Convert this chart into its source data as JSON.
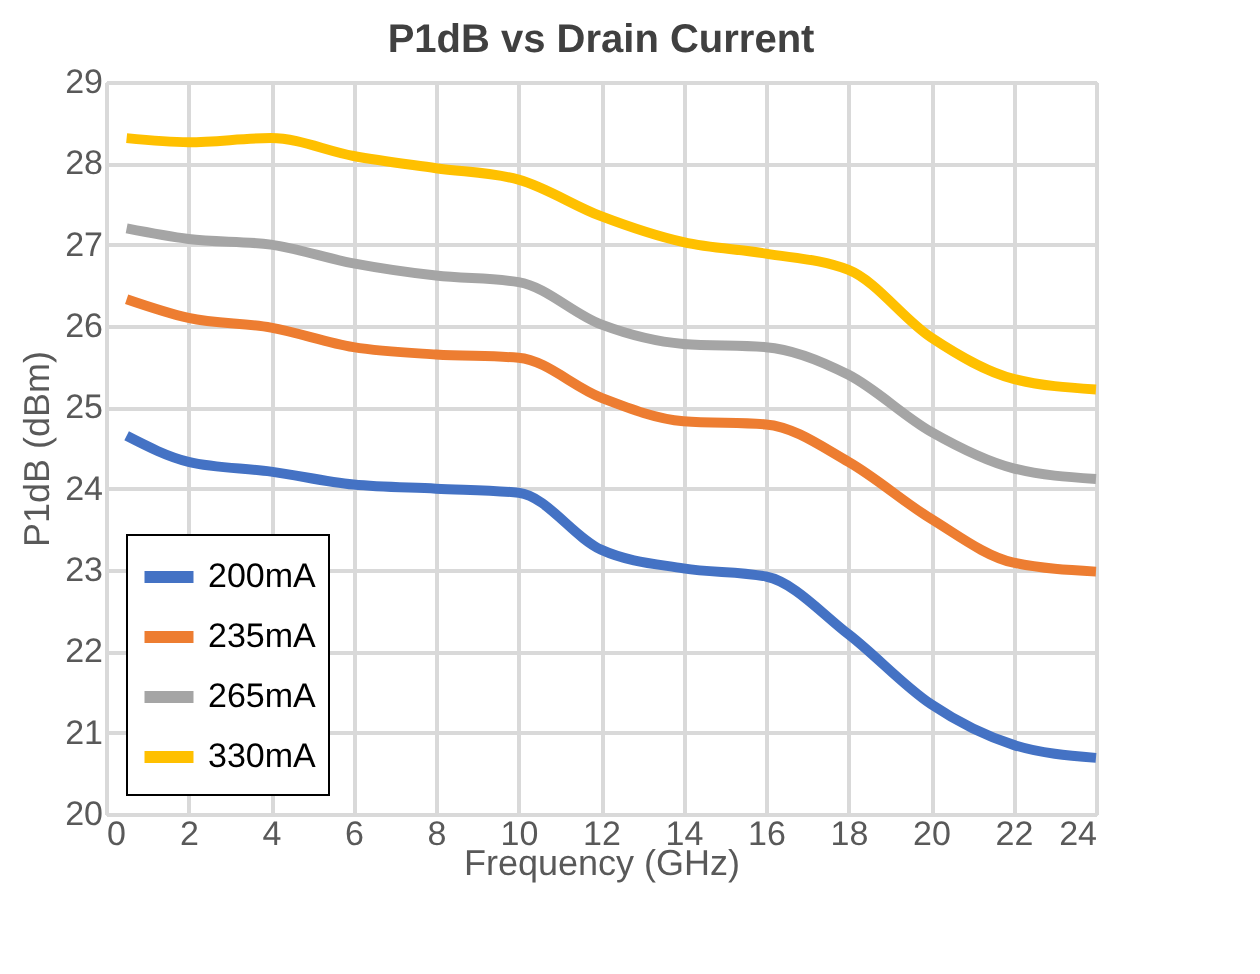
{
  "chart_data": {
    "type": "line",
    "title": "P1dB vs Drain Current",
    "xlabel": "Frequency (GHz)",
    "ylabel": "P1dB (dBm)",
    "x": [
      0.5,
      2,
      4,
      6,
      8,
      10,
      12,
      14,
      16,
      18,
      20,
      22,
      24
    ],
    "series": [
      {
        "name": "200mA",
        "color": "#4472c4",
        "values": [
          24.65,
          24.33,
          24.21,
          24.05,
          24.0,
          23.95,
          23.25,
          23.02,
          22.92,
          22.21,
          21.35,
          20.85,
          20.69
        ]
      },
      {
        "name": "235mA",
        "color": "#ed7d31",
        "values": [
          26.33,
          26.1,
          25.98,
          25.74,
          25.65,
          25.61,
          25.12,
          24.83,
          24.79,
          24.33,
          23.63,
          23.09,
          22.98
        ]
      },
      {
        "name": "265mA",
        "color": "#a5a5a5",
        "values": [
          27.2,
          27.07,
          27.0,
          26.77,
          26.62,
          26.54,
          26.02,
          25.78,
          25.74,
          25.4,
          24.7,
          24.25,
          24.12
        ]
      },
      {
        "name": "330mA",
        "color": "#ffc000",
        "values": [
          28.31,
          28.26,
          28.31,
          28.09,
          27.94,
          27.8,
          27.35,
          27.03,
          26.89,
          26.69,
          25.86,
          25.35,
          25.22
        ]
      }
    ],
    "xlim": [
      0,
      24
    ],
    "xticks": [
      0,
      2,
      4,
      6,
      8,
      10,
      12,
      14,
      16,
      18,
      20,
      22,
      24
    ],
    "ylim": [
      20,
      29
    ],
    "yticks": [
      20,
      21,
      22,
      23,
      24,
      25,
      26,
      27,
      28,
      29
    ],
    "grid": true,
    "legend": "bottom left",
    "marker": "none",
    "line_style": "solid"
  }
}
